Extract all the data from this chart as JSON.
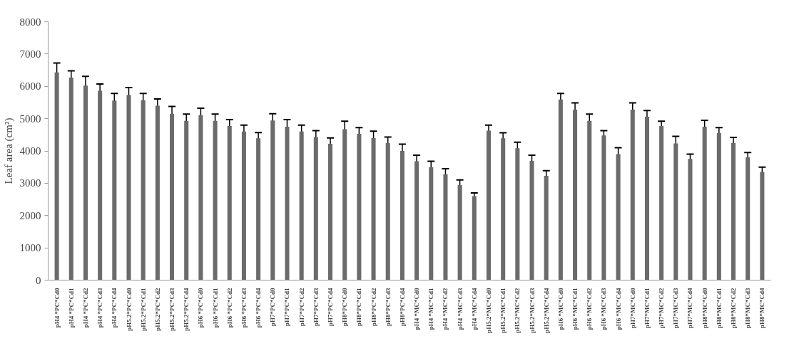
{
  "chart_data": {
    "type": "bar",
    "ylabel": "Leaf area (cm²)",
    "categories": [
      "pH4 *PC*Cd0",
      "pH4 *PC*Cd1",
      "pH4 *PC*Cd2",
      "pH4 *PC*Cd3",
      "pH4 *PC*Cd4",
      "pH5.2*PC*Cd0",
      "pH5.2*PC*Cd1",
      "pH5.2*PC*Cd2",
      "pH5.2*PC*Cd3",
      "pH5.2*PC*Cd4",
      "pH6 *PC*Cd0",
      "pH6 *PC*Cd1",
      "pH6 *PC*Cd2",
      "pH6 *PC*Cd3",
      "pH6 *PC*Cd4",
      "pH7*PC*Cd0",
      "pH7*PC*Cd1",
      "pH7*PC*Cd2",
      "pH7*PC*Cd3",
      "pH7*PC*Cd4",
      "pH8*PC*Cd0",
      "pH8*PC*Cd1",
      "pH8*PC*Cd2",
      "pH8*PC*Cd3",
      "pH8*PC*Cd4",
      "pH4 *MC*Cd0",
      "pH4 *MC*Cd1",
      "pH4 *MC*Cd2",
      "pH4 *MC*Cd3",
      "pH4 *MC*Cd4",
      "pH5.2*MC*Cd0",
      "pH5.2*MC*Cd1",
      "pH5.2*MC*Cd2",
      "pH5.2*MC*Cd3",
      "pH5.2*MC*Cd4",
      "pH6 *MC*Cd0",
      "pH6 *MC*Cd1",
      "pH6 *MC*Cd2",
      "pH6 *MC*Cd3",
      "pH6 *MC*Cd4",
      "pH7*MC*Cd0",
      "pH7*MC*Cd1",
      "pH7*MC*Cd2",
      "pH7*MC*Cd3",
      "pH7*MC*Cd4",
      "pH8*MC*Cd0",
      "pH8*MC*Cd1",
      "pH8*MC*Cd2",
      "pH8*MC*Cd3",
      "pH8*MC*Cd4"
    ],
    "values": [
      6430,
      6270,
      6020,
      5860,
      5560,
      5730,
      5570,
      5400,
      5150,
      4930,
      5110,
      4930,
      4770,
      4600,
      4390,
      4940,
      4750,
      4600,
      4430,
      4220,
      4670,
      4530,
      4400,
      4240,
      4000,
      3680,
      3500,
      3280,
      2940,
      2600,
      4630,
      4390,
      4080,
      3690,
      3230,
      5590,
      5280,
      4930,
      4480,
      3900,
      5280,
      5060,
      4770,
      4230,
      3750,
      4750,
      4550,
      4250,
      3800,
      3350
    ],
    "errors": [
      290,
      210,
      290,
      210,
      220,
      230,
      210,
      210,
      230,
      210,
      210,
      210,
      200,
      200,
      180,
      210,
      220,
      200,
      200,
      180,
      250,
      190,
      210,
      190,
      210,
      190,
      180,
      170,
      160,
      100,
      170,
      170,
      190,
      180,
      160,
      190,
      210,
      210,
      150,
      200,
      210,
      190,
      150,
      220,
      150,
      200,
      170,
      170,
      150,
      150
    ],
    "color": "#6b6b6b",
    "ylim": [
      0,
      8000
    ],
    "yticks": [
      0,
      1000,
      2000,
      3000,
      4000,
      5000,
      6000,
      7000,
      8000
    ],
    "grid": false
  }
}
